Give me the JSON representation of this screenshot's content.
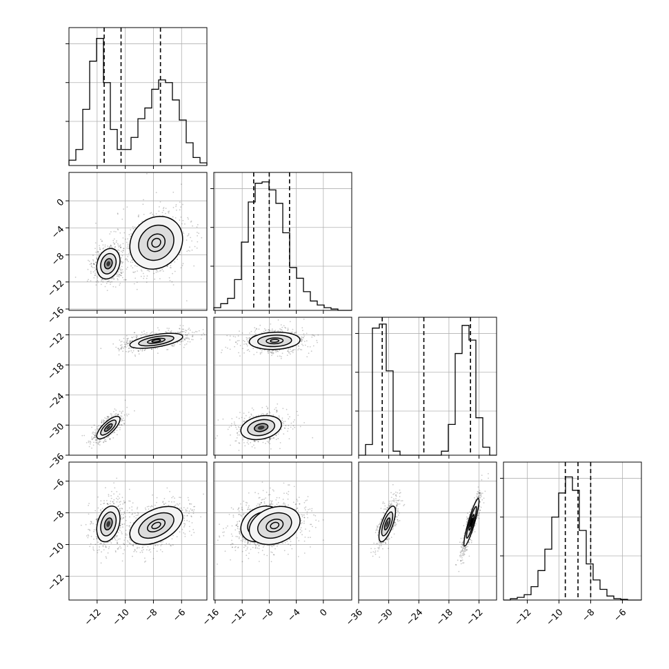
{
  "chart_data": {
    "type": "corner",
    "n_params": 4,
    "grid": true,
    "colors": {
      "line": "#000000",
      "samples": "#000000",
      "background": "#ffffff",
      "grid": "#b0b0b0"
    },
    "params": [
      {
        "range": [
          -14,
          -4.2
        ],
        "ticks": [
          -12,
          -10,
          -8,
          -6
        ],
        "tick_labels": [
          "−12",
          "−10",
          "−8",
          "−6"
        ],
        "quantiles": [
          -11.5,
          -10.3,
          -7.5
        ],
        "hist": [
          0.04,
          0.12,
          0.42,
          0.78,
          0.95,
          0.62,
          0.27,
          0.12,
          0.12,
          0.21,
          0.35,
          0.43,
          0.57,
          0.64,
          0.62,
          0.49,
          0.34,
          0.17,
          0.06,
          0.02
        ]
      },
      {
        "range": [
          -16.2,
          4.2
        ],
        "ticks": [
          -16,
          -12,
          -8,
          -4,
          0
        ],
        "tick_labels": [
          "−16",
          "−12",
          "−8",
          "−4",
          "0"
        ],
        "quantiles": [
          -10.3,
          -8.0,
          -5.0
        ],
        "hist": [
          0.02,
          0.05,
          0.09,
          0.23,
          0.51,
          0.81,
          0.95,
          0.96,
          0.9,
          0.8,
          0.58,
          0.32,
          0.24,
          0.14,
          0.07,
          0.04,
          0.02,
          0.01,
          0,
          0
        ]
      },
      {
        "range": [
          -36,
          -8.5
        ],
        "ticks": [
          -36,
          -30,
          -24,
          -18,
          -12
        ],
        "tick_labels": [
          "−36",
          "−30",
          "−24",
          "−18",
          "−12"
        ],
        "quantiles": [
          -31.3,
          -23.0,
          -13.7
        ],
        "hist": [
          0,
          0.08,
          0.95,
          0.98,
          0.63,
          0.03,
          0,
          0,
          0,
          0,
          0,
          0,
          0.03,
          0.23,
          0.76,
          0.97,
          0.86,
          0.28,
          0.06,
          0
        ]
      },
      {
        "range": [
          -13.5,
          -4.8
        ],
        "ticks": [
          -12,
          -10,
          -8,
          -6
        ],
        "tick_labels": [
          "−12",
          "−10",
          "−8",
          "−6"
        ],
        "quantiles": [
          -9.6,
          -8.8,
          -8.0
        ],
        "hist": [
          0,
          0.01,
          0.02,
          0.04,
          0.1,
          0.22,
          0.38,
          0.62,
          0.8,
          0.92,
          0.82,
          0.52,
          0.27,
          0.15,
          0.08,
          0.03,
          0.01,
          0.005,
          0,
          0
        ]
      }
    ],
    "y_ticks": [
      null,
      {
        "ticks": [
          0,
          -4,
          -8,
          -12,
          -16
        ],
        "tick_labels": [
          "0",
          "−4",
          "−8",
          "−12",
          "−16"
        ]
      },
      {
        "ticks": [
          -12,
          -18,
          -24,
          -30,
          -36
        ],
        "tick_labels": [
          "−12",
          "−18",
          "−24",
          "−30",
          "−36"
        ]
      },
      {
        "ticks": [
          -6,
          -8,
          -10,
          -12
        ],
        "tick_labels": [
          "−6",
          "−8",
          "−10",
          "−12"
        ]
      }
    ],
    "pairs": [
      {
        "x": 0,
        "y": 1,
        "clusters": [
          {
            "mean": [
              -11.2,
              -9.3
            ],
            "sd": [
              0.55,
              1.5
            ],
            "rho": 0.2,
            "weight": 0.45
          },
          {
            "mean": [
              -7.8,
              -6.2
            ],
            "sd": [
              1.25,
              2.6
            ],
            "rho": 0.15,
            "weight": 0.55
          }
        ]
      },
      {
        "x": 0,
        "y": 2,
        "clusters": [
          {
            "mean": [
              -11.2,
              -30.5
            ],
            "sd": [
              0.55,
              1.5
            ],
            "rho": 0.75,
            "weight": 0.45
          },
          {
            "mean": [
              -7.8,
              -13.2
            ],
            "sd": [
              1.25,
              1.0
            ],
            "rho": 0.55,
            "weight": 0.55
          }
        ]
      },
      {
        "x": 1,
        "y": 2,
        "clusters": [
          {
            "mean": [
              -9.2,
              -30.5
            ],
            "sd": [
              2.0,
              1.6
            ],
            "rho": 0.25,
            "weight": 0.45
          },
          {
            "mean": [
              -7.2,
              -13.2
            ],
            "sd": [
              2.5,
              1.15
            ],
            "rho": 0.1,
            "weight": 0.55
          }
        ]
      },
      {
        "x": 0,
        "y": 3,
        "clusters": [
          {
            "mean": [
              -11.2,
              -8.7
            ],
            "sd": [
              0.55,
              0.75
            ],
            "rho": 0.3,
            "weight": 0.45
          },
          {
            "mean": [
              -7.8,
              -8.8
            ],
            "sd": [
              1.25,
              0.8
            ],
            "rho": 0.45,
            "weight": 0.55
          }
        ]
      },
      {
        "x": 1,
        "y": 3,
        "clusters": [
          {
            "mean": [
              -9.2,
              -8.7
            ],
            "sd": [
              2.0,
              0.75
            ],
            "rho": 0.25,
            "weight": 0.45
          },
          {
            "mean": [
              -7.2,
              -8.8
            ],
            "sd": [
              2.5,
              0.8
            ],
            "rho": 0.25,
            "weight": 0.55
          }
        ]
      },
      {
        "x": 2,
        "y": 3,
        "clusters": [
          {
            "mean": [
              -30.3,
              -8.7
            ],
            "sd": [
              1.1,
              0.75
            ],
            "rho": 0.7,
            "weight": 0.45
          },
          {
            "mean": [
              -13.5,
              -8.6
            ],
            "sd": [
              1.0,
              1.0
            ],
            "rho": 0.9,
            "weight": 0.55
          }
        ]
      }
    ],
    "contour_levels": [
      0.5,
      1.0,
      1.5
    ]
  }
}
